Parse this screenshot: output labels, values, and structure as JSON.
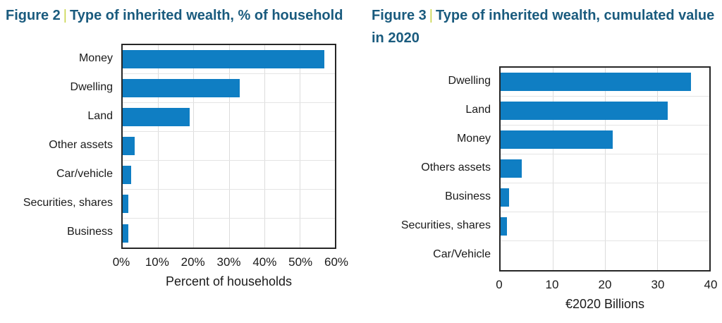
{
  "figures": [
    {
      "label": "Figure 2",
      "separator": "|",
      "title": "Type of inherited wealth, % of household"
    },
    {
      "label": "Figure 3",
      "separator": "|",
      "title": "Type of inherited wealth, cumulated value in 2020"
    }
  ],
  "colors": {
    "bar": "#0f7ec3",
    "title": "#1a5b7e",
    "separator": "#c9d64d",
    "grid": "#dcdcdc",
    "row_grid": "#e4e4e4",
    "plot_border": "#262626",
    "text": "#1a1a1a"
  },
  "chart_data": [
    {
      "type": "bar",
      "orientation": "horizontal",
      "title": "Figure 2 | Type of inherited wealth, % of household",
      "categories": [
        "Money",
        "Dwelling",
        "Land",
        "Other assets",
        "Car/vehicle",
        "Securities, shares",
        "Business"
      ],
      "values": [
        57,
        33,
        19,
        3.4,
        2.3,
        1.5,
        1.5
      ],
      "xlabel": "Percent of households",
      "xlim": [
        0,
        60
      ],
      "ticks": [
        0,
        10,
        20,
        30,
        40,
        50,
        60
      ],
      "tick_labels": [
        "0%",
        "10%",
        "20%",
        "30%",
        "40%",
        "50%",
        "60%"
      ],
      "grid": true,
      "legend": false
    },
    {
      "type": "bar",
      "orientation": "horizontal",
      "title": "Figure 3 | Type of inherited wealth, cumulated value in 2020",
      "categories": [
        "Dwelling",
        "Land",
        "Money",
        "Others assets",
        "Business",
        "Securities, shares",
        "Car/Vehicle"
      ],
      "values": [
        36.5,
        32,
        21.5,
        4,
        1.6,
        1.2,
        0
      ],
      "xlabel": "€2020 Billions",
      "xlim": [
        0,
        40
      ],
      "ticks": [
        0,
        10,
        20,
        30,
        40
      ],
      "tick_labels": [
        "0",
        "10",
        "20",
        "30",
        "40"
      ],
      "grid": true,
      "legend": false
    }
  ]
}
